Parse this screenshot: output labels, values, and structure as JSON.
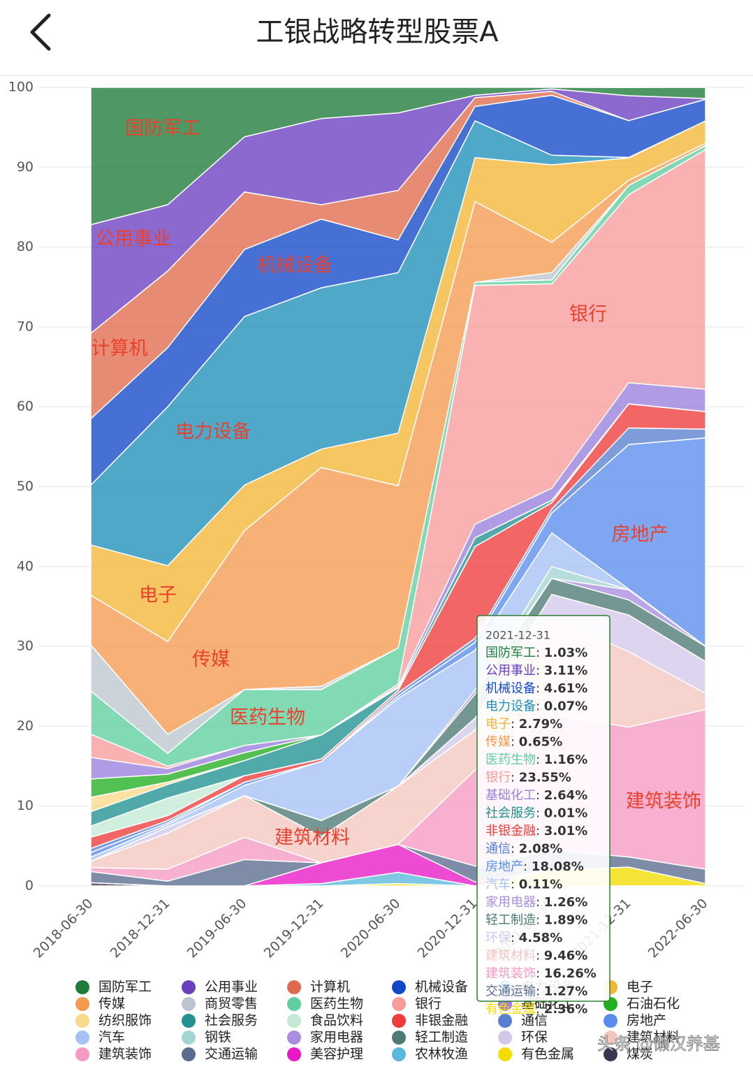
{
  "header": {
    "title": "工银战略转型股票A"
  },
  "watermark": "头条 @懒汉养基",
  "chart_data": {
    "type": "stacked_area",
    "grid": true,
    "categories": [
      "2018-06-30",
      "2018-12-31",
      "2019-06-30",
      "2019-12-31",
      "2020-06-30",
      "2020-12-31",
      "2021-06-30",
      "2021-12-31",
      "2022-06-30"
    ],
    "ylim": [
      0,
      100
    ],
    "yticks": [
      0,
      10,
      20,
      30,
      40,
      50,
      60,
      70,
      80,
      90,
      100
    ],
    "series": [
      {
        "name": "国防军工",
        "color": "#1e7b3a",
        "values": [
          17.2,
          14.7,
          6.2,
          3.9,
          3.2,
          1.0,
          0.2,
          1.03,
          1.4
        ]
      },
      {
        "name": "公用事业",
        "color": "#6a3fc0",
        "values": [
          13.6,
          8.3,
          6.9,
          10.8,
          9.7,
          0.3,
          0.3,
          3.11,
          0.1
        ]
      },
      {
        "name": "计算机",
        "color": "#e06a4d",
        "values": [
          10.7,
          9.6,
          7.2,
          1.8,
          6.2,
          1.1,
          0.5,
          0,
          0
        ]
      },
      {
        "name": "机械设备",
        "color": "#1248c7",
        "values": [
          8.3,
          7.4,
          8.4,
          8.6,
          4.1,
          1.8,
          7.5,
          4.61,
          2.7
        ]
      },
      {
        "name": "电力设备",
        "color": "#1f8fb8",
        "values": [
          7.5,
          19.9,
          21.1,
          20.2,
          20.1,
          4.6,
          1.2,
          0.07,
          0
        ]
      },
      {
        "name": "电子",
        "color": "#f2b635",
        "values": [
          6.3,
          9.5,
          5.7,
          2.3,
          6.6,
          5.5,
          9.7,
          2.79,
          2.8
        ]
      },
      {
        "name": "传媒",
        "color": "#f59a50",
        "values": [
          6.2,
          11.6,
          19.9,
          27.4,
          20.3,
          10.1,
          3.8,
          0.65,
          0.3
        ]
      },
      {
        "name": "商贸零售",
        "color": "#bcc5cf",
        "values": [
          5.8,
          2.4,
          0,
          0.4,
          0,
          0,
          0.9,
          0,
          0
        ]
      },
      {
        "name": "医药生物",
        "color": "#5fcf9f",
        "values": [
          5.4,
          1.6,
          7.0,
          5.7,
          4.5,
          0.4,
          0.5,
          1.16,
          0.5
        ]
      },
      {
        "name": "银行",
        "color": "#f79b9b",
        "values": [
          2.9,
          0.3,
          0,
          0,
          0.3,
          29.9,
          25.6,
          23.55,
          30.0
        ]
      },
      {
        "name": "基础化工",
        "color": "#9a80dc",
        "values": [
          2.7,
          0.7,
          0.9,
          0,
          0.2,
          1.7,
          1.5,
          2.64,
          2.8
        ]
      },
      {
        "name": "石油石化",
        "color": "#21b021",
        "values": [
          2.3,
          1.0,
          1.0,
          0,
          0,
          0,
          0,
          0,
          0
        ]
      },
      {
        "name": "纺织服饰",
        "color": "#fad98a",
        "values": [
          1.8,
          0.3,
          0,
          0,
          0,
          0,
          0,
          0,
          0
        ]
      },
      {
        "name": "社会服务",
        "color": "#219191",
        "values": [
          1.8,
          1.7,
          1.9,
          3.0,
          0.3,
          1.1,
          0.3,
          0.01,
          0
        ]
      },
      {
        "name": "食品饮料",
        "color": "#c4ead6",
        "values": [
          1.4,
          2.2,
          0,
          0,
          0,
          0,
          0,
          0,
          0
        ]
      },
      {
        "name": "非银金融",
        "color": "#ef3b3b",
        "values": [
          1.4,
          0.6,
          0.8,
          0.3,
          0.3,
          11.5,
          0.8,
          3.01,
          2.2
        ]
      },
      {
        "name": "通信",
        "color": "#5a7fcf",
        "values": [
          0.5,
          0.3,
          0,
          0,
          0.4,
          0.5,
          0.5,
          2.08,
          1.1
        ]
      },
      {
        "name": "房地产",
        "color": "#5a8ded",
        "values": [
          0.6,
          0.2,
          0.4,
          0,
          0.3,
          1.0,
          2.5,
          18.08,
          26.1
        ]
      },
      {
        "name": "汽车",
        "color": "#a6c2f5",
        "values": [
          0.5,
          0.3,
          1.3,
          7.4,
          11.0,
          5.0,
          4.2,
          0.11,
          0
        ]
      },
      {
        "name": "钢铁",
        "color": "#a3d5d3",
        "values": [
          0,
          0,
          0,
          0,
          0,
          0,
          1.5,
          0,
          0
        ]
      },
      {
        "name": "家用电器",
        "color": "#a88de0",
        "values": [
          0,
          0,
          0,
          0,
          0,
          0.5,
          0,
          1.26,
          0
        ]
      },
      {
        "name": "轻工制造",
        "color": "#4e7a74",
        "values": [
          0,
          0,
          0,
          2.0,
          0,
          3.0,
          2.0,
          1.89,
          1.9
        ]
      },
      {
        "name": "环保",
        "color": "#d4c8ea",
        "values": [
          0,
          0.8,
          0,
          0,
          0,
          1.5,
          3.0,
          4.58,
          4.0
        ]
      },
      {
        "name": "建筑材料",
        "color": "#f3c6bf",
        "values": [
          0.8,
          4.5,
          5.2,
          3.3,
          7.3,
          5.0,
          12.0,
          9.46,
          2.0
        ]
      },
      {
        "name": "建筑装饰",
        "color": "#f59ac3",
        "values": [
          0.5,
          1.5,
          2.8,
          0,
          0,
          12.0,
          17.0,
          16.26,
          20.0
        ]
      },
      {
        "name": "交通运输",
        "color": "#5a6b90",
        "values": [
          1.4,
          0.6,
          3.3,
          0,
          0,
          2.0,
          2.5,
          1.27,
          1.8
        ]
      },
      {
        "name": "美容护理",
        "color": "#e818c8",
        "values": [
          0,
          0,
          0,
          2.6,
          3.5,
          0.5,
          0,
          0,
          0
        ]
      },
      {
        "name": "农林牧渔",
        "color": "#5ab8dd",
        "values": [
          0,
          0,
          0,
          0.3,
          1.4,
          0,
          0,
          0,
          0
        ]
      },
      {
        "name": "有色金属",
        "color": "#f5dc00",
        "values": [
          0,
          0,
          0,
          0,
          0.3,
          0,
          2.0,
          2.36,
          0.3
        ]
      },
      {
        "name": "煤炭",
        "color": "#3d3552",
        "values": [
          0.4,
          0,
          0,
          0,
          0,
          0,
          0,
          0,
          0
        ]
      }
    ],
    "tooltip": {
      "title": "2021-12-31",
      "separator": ": ",
      "rows": [
        {
          "name": "国防军工",
          "value": "1.03%"
        },
        {
          "name": "公用事业",
          "value": "3.11%"
        },
        {
          "name": "机械设备",
          "value": "4.61%"
        },
        {
          "name": "电力设备",
          "value": "0.07%"
        },
        {
          "name": "电子",
          "value": "2.79%"
        },
        {
          "name": "传媒",
          "value": "0.65%"
        },
        {
          "name": "医药生物",
          "value": "1.16%"
        },
        {
          "name": "银行",
          "value": "23.55%"
        },
        {
          "name": "基础化工",
          "value": "2.64%"
        },
        {
          "name": "社会服务",
          "value": "0.01%"
        },
        {
          "name": "非银金融",
          "value": "3.01%"
        },
        {
          "name": "通信",
          "value": "2.08%"
        },
        {
          "name": "房地产",
          "value": "18.08%"
        },
        {
          "name": "汽车",
          "value": "0.11%"
        },
        {
          "name": "家用电器",
          "value": "1.26%"
        },
        {
          "name": "轻工制造",
          "value": "1.89%"
        },
        {
          "name": "环保",
          "value": "4.58%"
        },
        {
          "name": "建筑材料",
          "value": "9.46%"
        },
        {
          "name": "建筑装饰",
          "value": "16.26%"
        },
        {
          "name": "交通运输",
          "value": "1.27%"
        },
        {
          "name": "有色金属",
          "value": "2.36%"
        }
      ]
    }
  }
}
